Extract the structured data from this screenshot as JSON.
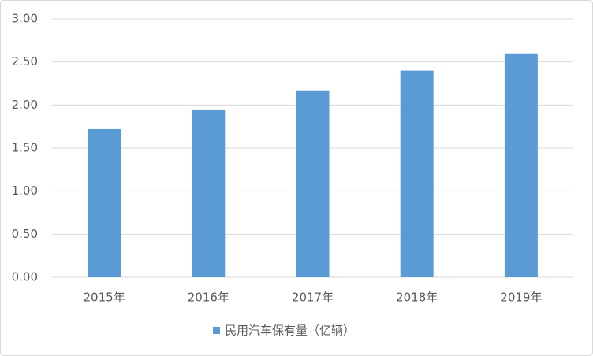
{
  "chart_data": {
    "type": "bar",
    "categories": [
      "2015年",
      "2016年",
      "2017年",
      "2018年",
      "2019年"
    ],
    "series": [
      {
        "name": "民用汽车保有量（亿辆）",
        "color": "#5b9bd5",
        "values": [
          1.72,
          1.94,
          2.17,
          2.4,
          2.6
        ]
      }
    ],
    "ylim": [
      0,
      3
    ],
    "yticks": [
      {
        "value": 0,
        "label": "0.00"
      },
      {
        "value": 0.5,
        "label": "0.50"
      },
      {
        "value": 1,
        "label": "1.00"
      },
      {
        "value": 1.5,
        "label": "1.50"
      },
      {
        "value": 2,
        "label": "2.00"
      },
      {
        "value": 2.5,
        "label": "2.50"
      },
      {
        "value": 3,
        "label": "3.00"
      }
    ],
    "grid": true,
    "legend": "bottom"
  }
}
